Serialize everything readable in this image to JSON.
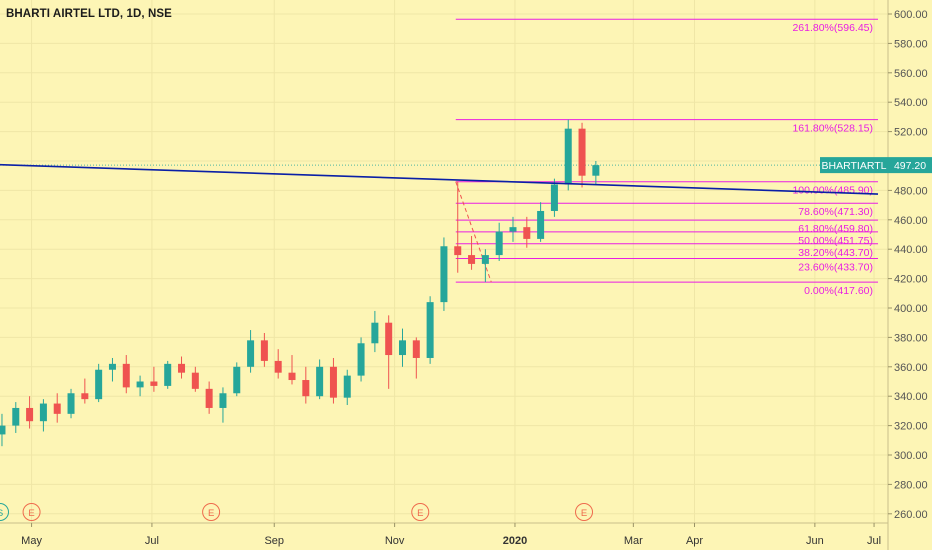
{
  "header": {
    "title": "BHARTI AIRTEL LTD, 1D, NSE"
  },
  "colors": {
    "background": "#fdf5b5",
    "up": "#26a69a",
    "down": "#ef5350",
    "fib": "#e91ee3",
    "trendline": "#0a1fa6",
    "price_label": "#26a69a",
    "event": "#ef6b4d"
  },
  "chart_data": {
    "type": "candlestick",
    "title": "BHARTI AIRTEL LTD, 1D, NSE",
    "timeframe": "1D",
    "exchange": "NSE",
    "xlabel": "",
    "ylabel": "",
    "ylim": [
      250,
      610
    ],
    "y_ticks": [
      {
        "value": 260,
        "label": "260.00"
      },
      {
        "value": 280,
        "label": "280.00"
      },
      {
        "value": 300,
        "label": "300.00"
      },
      {
        "value": 320,
        "label": "320.00"
      },
      {
        "value": 340,
        "label": "340.00"
      },
      {
        "value": 360,
        "label": "360.00"
      },
      {
        "value": 380,
        "label": "380.00"
      },
      {
        "value": 400,
        "label": "400.00"
      },
      {
        "value": 420,
        "label": "420.00"
      },
      {
        "value": 440,
        "label": "440.00"
      },
      {
        "value": 460,
        "label": "460.00"
      },
      {
        "value": 480,
        "label": "480.00"
      },
      {
        "value": 500,
        "label": "500.00"
      },
      {
        "value": 520,
        "label": "520.00"
      },
      {
        "value": 540,
        "label": "540.00"
      },
      {
        "value": 560,
        "label": "560.00"
      },
      {
        "value": 580,
        "label": "580.00"
      },
      {
        "value": 600,
        "label": "600.00"
      }
    ],
    "x_ticks": [
      {
        "date": "2019-05-01",
        "label": "May",
        "bold": false
      },
      {
        "date": "2019-07-01",
        "label": "Jul",
        "bold": false
      },
      {
        "date": "2019-09-01",
        "label": "Sep",
        "bold": false
      },
      {
        "date": "2019-11-01",
        "label": "Nov",
        "bold": false
      },
      {
        "date": "2020-01-01",
        "label": "2020",
        "bold": true
      },
      {
        "date": "2020-03-01",
        "label": "Mar",
        "bold": false
      },
      {
        "date": "2020-04-01",
        "label": "Apr",
        "bold": false
      },
      {
        "date": "2020-06-01",
        "label": "Jun",
        "bold": false
      },
      {
        "date": "2020-07-01",
        "label": "Jul",
        "bold": false
      }
    ],
    "grid": true,
    "last_price": {
      "symbol": "BHARTIARTL",
      "value": 497.2,
      "label": "497.20"
    },
    "fibonacci": [
      {
        "level": "0.00%",
        "value": 417.6,
        "label": "0.00%(417.60)"
      },
      {
        "level": "23.60%",
        "value": 433.7,
        "label": "23.60%(433.70)"
      },
      {
        "level": "38.20%",
        "value": 443.7,
        "label": "38.20%(443.70)"
      },
      {
        "level": "50.00%",
        "value": 451.75,
        "label": "50.00%(451.75)"
      },
      {
        "level": "61.80%",
        "value": 459.8,
        "label": "61.80%(459.80)"
      },
      {
        "level": "78.60%",
        "value": 471.3,
        "label": "78.60%(471.30)"
      },
      {
        "level": "100.00%",
        "value": 485.9,
        "label": "100.00%(485.90)"
      },
      {
        "level": "161.80%",
        "value": 528.15,
        "label": "161.80%(528.15)"
      },
      {
        "level": "261.80%",
        "value": 596.45,
        "label": "261.80%(596.45)"
      }
    ],
    "fib_range": {
      "start": "2019-12-02",
      "end": "2020-07-03"
    },
    "fib_anchor": {
      "from": {
        "date": "2019-12-02",
        "value": 485.9
      },
      "to": {
        "date": "2019-12-20",
        "value": 417.6
      }
    },
    "trendline": {
      "from": {
        "date": "2019-04-15",
        "value": 497.5
      },
      "to": {
        "date": "2020-07-03",
        "value": 477.5
      }
    },
    "events": [
      {
        "date": "2019-04-15",
        "letter": "S",
        "kind": "split"
      },
      {
        "date": "2019-05-01",
        "letter": "E",
        "kind": "earnings"
      },
      {
        "date": "2019-07-31",
        "letter": "E",
        "kind": "earnings"
      },
      {
        "date": "2019-11-14",
        "letter": "E",
        "kind": "earnings"
      },
      {
        "date": "2020-02-05",
        "letter": "E",
        "kind": "earnings"
      }
    ],
    "series": [
      {
        "date": "2019-04-16",
        "open": 314,
        "high": 328,
        "low": 306,
        "close": 320
      },
      {
        "date": "2019-04-23",
        "open": 320,
        "high": 336,
        "low": 315,
        "close": 332
      },
      {
        "date": "2019-04-30",
        "open": 332,
        "high": 340,
        "low": 318,
        "close": 323
      },
      {
        "date": "2019-05-07",
        "open": 323,
        "high": 338,
        "low": 316,
        "close": 335
      },
      {
        "date": "2019-05-14",
        "open": 335,
        "high": 342,
        "low": 322,
        "close": 328
      },
      {
        "date": "2019-05-21",
        "open": 328,
        "high": 345,
        "low": 325,
        "close": 342
      },
      {
        "date": "2019-05-28",
        "open": 342,
        "high": 352,
        "low": 335,
        "close": 338
      },
      {
        "date": "2019-06-04",
        "open": 338,
        "high": 362,
        "low": 336,
        "close": 358
      },
      {
        "date": "2019-06-11",
        "open": 358,
        "high": 366,
        "low": 350,
        "close": 362
      },
      {
        "date": "2019-06-18",
        "open": 362,
        "high": 368,
        "low": 342,
        "close": 346
      },
      {
        "date": "2019-06-25",
        "open": 346,
        "high": 354,
        "low": 340,
        "close": 350
      },
      {
        "date": "2019-07-02",
        "open": 350,
        "high": 360,
        "low": 343,
        "close": 347
      },
      {
        "date": "2019-07-09",
        "open": 347,
        "high": 364,
        "low": 345,
        "close": 362
      },
      {
        "date": "2019-07-16",
        "open": 362,
        "high": 367,
        "low": 352,
        "close": 356
      },
      {
        "date": "2019-07-23",
        "open": 356,
        "high": 360,
        "low": 343,
        "close": 345
      },
      {
        "date": "2019-07-30",
        "open": 345,
        "high": 350,
        "low": 328,
        "close": 332
      },
      {
        "date": "2019-08-06",
        "open": 332,
        "high": 346,
        "low": 322,
        "close": 342
      },
      {
        "date": "2019-08-13",
        "open": 342,
        "high": 363,
        "low": 340,
        "close": 360
      },
      {
        "date": "2019-08-20",
        "open": 360,
        "high": 385,
        "low": 356,
        "close": 378
      },
      {
        "date": "2019-08-27",
        "open": 378,
        "high": 383,
        "low": 360,
        "close": 364
      },
      {
        "date": "2019-09-03",
        "open": 364,
        "high": 372,
        "low": 352,
        "close": 356
      },
      {
        "date": "2019-09-10",
        "open": 356,
        "high": 368,
        "low": 348,
        "close": 351
      },
      {
        "date": "2019-09-17",
        "open": 351,
        "high": 360,
        "low": 335,
        "close": 340
      },
      {
        "date": "2019-09-24",
        "open": 340,
        "high": 365,
        "low": 338,
        "close": 360
      },
      {
        "date": "2019-10-01",
        "open": 360,
        "high": 366,
        "low": 335,
        "close": 339
      },
      {
        "date": "2019-10-08",
        "open": 339,
        "high": 358,
        "low": 334,
        "close": 354
      },
      {
        "date": "2019-10-15",
        "open": 354,
        "high": 380,
        "low": 350,
        "close": 376
      },
      {
        "date": "2019-10-22",
        "open": 376,
        "high": 398,
        "low": 370,
        "close": 390
      },
      {
        "date": "2019-10-29",
        "open": 390,
        "high": 395,
        "low": 345,
        "close": 368
      },
      {
        "date": "2019-11-05",
        "open": 368,
        "high": 386,
        "low": 360,
        "close": 378
      },
      {
        "date": "2019-11-12",
        "open": 378,
        "high": 380,
        "low": 352,
        "close": 366
      },
      {
        "date": "2019-11-19",
        "open": 366,
        "high": 408,
        "low": 362,
        "close": 404
      },
      {
        "date": "2019-11-26",
        "open": 404,
        "high": 448,
        "low": 398,
        "close": 442
      },
      {
        "date": "2019-12-03",
        "open": 442,
        "high": 486,
        "low": 424,
        "close": 436
      },
      {
        "date": "2019-12-10",
        "open": 436,
        "high": 449,
        "low": 426,
        "close": 430
      },
      {
        "date": "2019-12-17",
        "open": 430,
        "high": 440,
        "low": 417.6,
        "close": 436
      },
      {
        "date": "2019-12-24",
        "open": 436,
        "high": 458,
        "low": 432,
        "close": 452
      },
      {
        "date": "2019-12-31",
        "open": 452,
        "high": 462,
        "low": 445,
        "close": 455
      },
      {
        "date": "2020-01-07",
        "open": 455,
        "high": 462,
        "low": 441,
        "close": 447
      },
      {
        "date": "2020-01-14",
        "open": 447,
        "high": 472,
        "low": 445,
        "close": 466
      },
      {
        "date": "2020-01-21",
        "open": 466,
        "high": 488,
        "low": 462,
        "close": 484
      },
      {
        "date": "2020-01-28",
        "open": 484,
        "high": 528.15,
        "low": 480,
        "close": 522
      },
      {
        "date": "2020-02-04",
        "open": 522,
        "high": 526,
        "low": 482,
        "close": 490
      },
      {
        "date": "2020-02-11",
        "open": 490,
        "high": 500,
        "low": 484,
        "close": 497.2
      }
    ]
  }
}
